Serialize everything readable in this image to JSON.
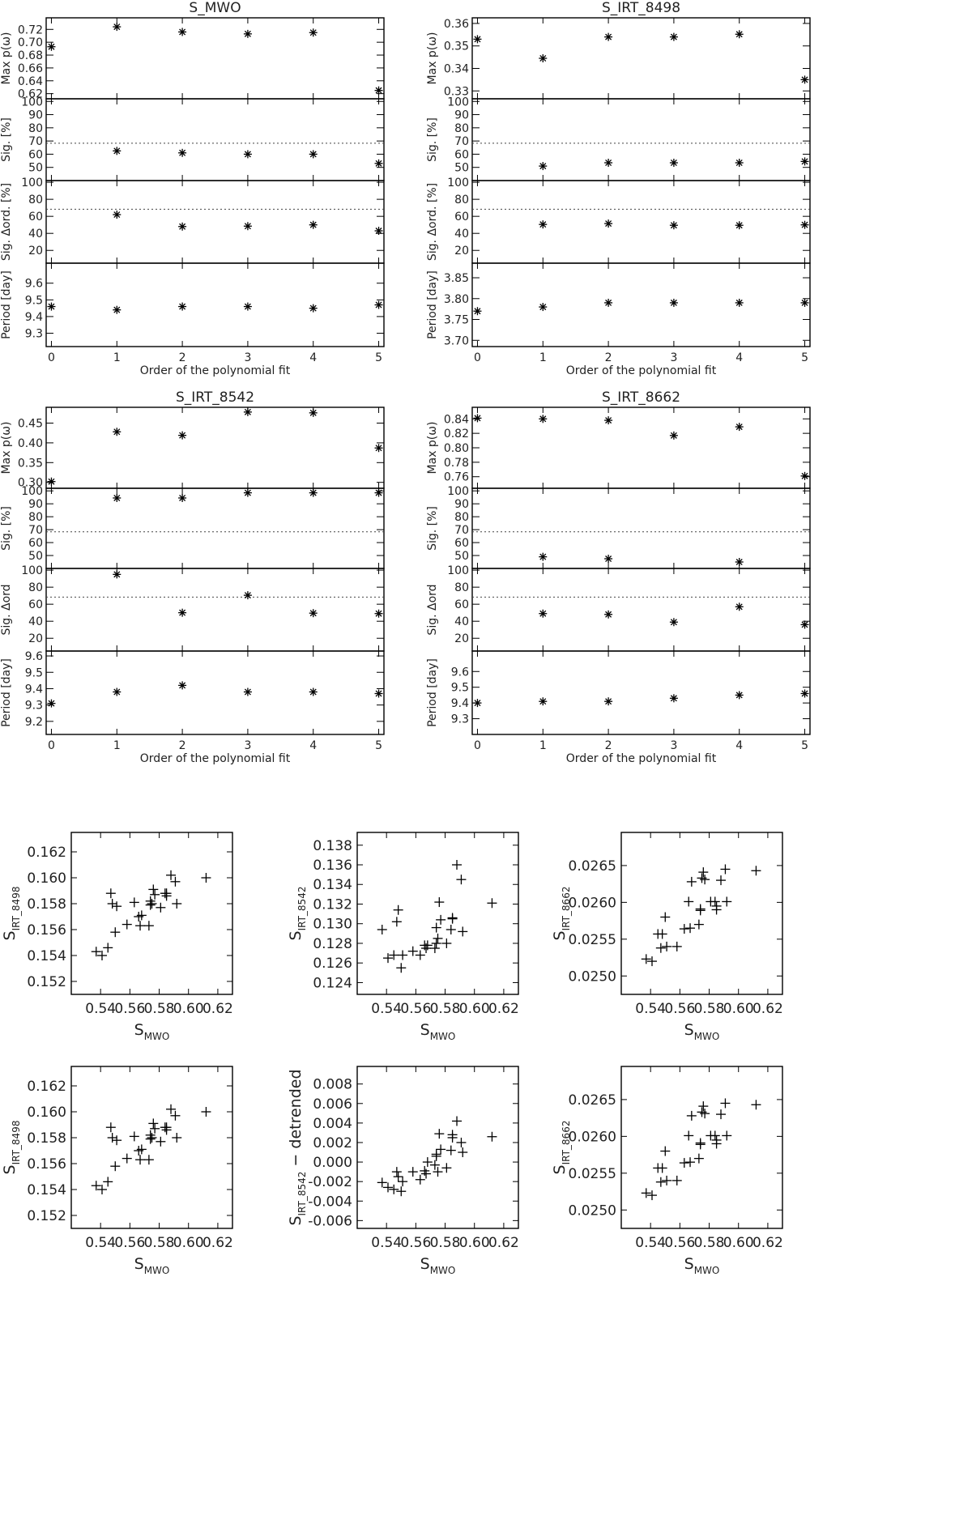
{
  "chart_data": [
    {
      "type": "scatter",
      "title": "S_MWO",
      "xlabel": "Order of the polynomial fit",
      "x": [
        0,
        1,
        2,
        3,
        4,
        5
      ],
      "x_ticks": [
        "0",
        "1",
        "2",
        "3",
        "4",
        "5"
      ],
      "panels": [
        {
          "ylabel": "Max p(ω)",
          "ylim": [
            0.612,
            0.738
          ],
          "yticks": [
            "0.62",
            "0.64",
            "0.66",
            "0.68",
            "0.70",
            "0.72"
          ],
          "values": [
            0.693,
            0.724,
            0.716,
            0.713,
            0.715,
            0.625
          ]
        },
        {
          "ylabel": "Sig. [%]",
          "ylim": [
            40,
            102
          ],
          "yticks": [
            "50",
            "60",
            "70",
            "80",
            "90",
            "100"
          ],
          "reference": 68.3,
          "values": [
            null,
            62.5,
            61,
            60,
            60,
            53
          ]
        },
        {
          "ylabel": "Sig. Δord. [%]",
          "ylim": [
            5,
            102
          ],
          "yticks": [
            "20",
            "40",
            "60",
            "80",
            "100"
          ],
          "reference": 68.3,
          "values": [
            null,
            62,
            48,
            48.5,
            50,
            43
          ]
        },
        {
          "ylabel": "Period [day]",
          "ylim": [
            9.22,
            9.72
          ],
          "yticks": [
            "9.3",
            "9.4",
            "9.5",
            "9.6"
          ],
          "values": [
            9.46,
            9.44,
            9.46,
            9.46,
            9.45,
            9.47
          ]
        }
      ]
    },
    {
      "type": "scatter",
      "title": "S_IRT_8498",
      "xlabel": "Order of the polynomial fit",
      "x": [
        0,
        1,
        2,
        3,
        4,
        5
      ],
      "x_ticks": [
        "0",
        "1",
        "2",
        "3",
        "4",
        "5"
      ],
      "panels": [
        {
          "ylabel": "Max p(ω)",
          "ylim": [
            0.3265,
            0.3625
          ],
          "yticks": [
            "0.33",
            "0.34",
            "0.35",
            "0.36"
          ],
          "values": [
            0.353,
            0.3445,
            0.354,
            0.354,
            0.3552,
            0.335
          ]
        },
        {
          "ylabel": "Sig. [%]",
          "ylim": [
            40,
            102
          ],
          "yticks": [
            "50",
            "60",
            "70",
            "80",
            "90",
            "100"
          ],
          "reference": 68.3,
          "values": [
            null,
            51,
            53.5,
            53.5,
            53.5,
            54.5
          ]
        },
        {
          "ylabel": "Sig. Δord. [%]",
          "ylim": [
            5,
            102
          ],
          "yticks": [
            "20",
            "40",
            "60",
            "80",
            "100"
          ],
          "reference": 68.3,
          "values": [
            null,
            50.5,
            51.5,
            49.5,
            49.5,
            50
          ]
        },
        {
          "ylabel": "Period [day]",
          "ylim": [
            3.685,
            3.885
          ],
          "yticks": [
            "3.70",
            "3.75",
            "3.80",
            "3.85"
          ],
          "values": [
            3.77,
            3.78,
            3.79,
            3.79,
            3.79,
            3.79
          ]
        }
      ]
    },
    {
      "type": "scatter",
      "title": "S_IRT_8542",
      "xlabel": "Order of the polynomial fit",
      "x": [
        0,
        1,
        2,
        3,
        4,
        5
      ],
      "x_ticks": [
        "0",
        "1",
        "2",
        "3",
        "4",
        "5"
      ],
      "panels": [
        {
          "ylabel": "Max p(ω)",
          "ylim": [
            0.285,
            0.49
          ],
          "yticks": [
            "0.30",
            "0.35",
            "0.40",
            "0.45"
          ],
          "values": [
            0.302,
            0.428,
            0.419,
            0.478,
            0.476,
            0.387
          ]
        },
        {
          "ylabel": "Sig. [%]",
          "ylim": [
            40,
            102
          ],
          "yticks": [
            "50",
            "60",
            "70",
            "80",
            "90",
            "100"
          ],
          "reference": 68.3,
          "values": [
            null,
            94.5,
            94.5,
            98.5,
            98.5,
            98.5
          ]
        },
        {
          "ylabel": "Sig. Δord",
          "ylim": [
            5,
            102
          ],
          "yticks": [
            "20",
            "40",
            "60",
            "80",
            "100"
          ],
          "reference": 68.3,
          "values": [
            null,
            95,
            50,
            70.5,
            49.5,
            49
          ]
        },
        {
          "ylabel": "Period [day]",
          "ylim": [
            9.12,
            9.63
          ],
          "yticks": [
            "9.2",
            "9.3",
            "9.4",
            "9.5",
            "9.6"
          ],
          "values": [
            9.31,
            9.38,
            9.42,
            9.38,
            9.38,
            9.37
          ]
        }
      ]
    },
    {
      "type": "scatter",
      "title": "S_IRT_8662",
      "xlabel": "Order of the polynomial fit",
      "x": [
        0,
        1,
        2,
        3,
        4,
        5
      ],
      "x_ticks": [
        "0",
        "1",
        "2",
        "3",
        "4",
        "5"
      ],
      "panels": [
        {
          "ylabel": "Max p(ω)",
          "ylim": [
            0.744,
            0.856
          ],
          "yticks": [
            "0.76",
            "0.78",
            "0.80",
            "0.82",
            "0.84"
          ],
          "values": [
            0.841,
            0.84,
            0.838,
            0.817,
            0.829,
            0.761
          ]
        },
        {
          "ylabel": "Sig. [%]",
          "ylim": [
            40,
            102
          ],
          "yticks": [
            "50",
            "60",
            "70",
            "80",
            "90",
            "100"
          ],
          "reference": 68.3,
          "values": [
            null,
            49,
            47.5,
            null,
            45,
            null
          ]
        },
        {
          "ylabel": "Sig. Δord",
          "ylim": [
            5,
            102
          ],
          "yticks": [
            "20",
            "40",
            "60",
            "80",
            "100"
          ],
          "reference": 68.3,
          "values": [
            null,
            49,
            48,
            39,
            57,
            36
          ]
        },
        {
          "ylabel": "Period [day]",
          "ylim": [
            9.2,
            9.73
          ],
          "yticks": [
            "9.3",
            "9.4",
            "9.5",
            "9.6"
          ],
          "values": [
            9.4,
            9.41,
            9.41,
            9.43,
            9.45,
            9.46
          ]
        }
      ]
    },
    {
      "type": "scatter",
      "xlabel": "S_MWO",
      "ylabel": "S_IRT_8498",
      "xlim": [
        0.52,
        0.63
      ],
      "ylim": [
        0.151,
        0.1635
      ],
      "xticks": [
        "0.54",
        "0.56",
        "0.58",
        "0.60",
        "0.62"
      ],
      "yticks": [
        "0.152",
        "0.154",
        "0.156",
        "0.158",
        "0.160",
        "0.162"
      ],
      "x": [
        0.537,
        0.541,
        0.545,
        0.547,
        0.548,
        0.55,
        0.551,
        0.558,
        0.563,
        0.566,
        0.567,
        0.568,
        0.573,
        0.574,
        0.574,
        0.575,
        0.576,
        0.577,
        0.581,
        0.584,
        0.585,
        0.585,
        0.588,
        0.591,
        0.592,
        0.612
      ],
      "y": [
        0.1543,
        0.154,
        0.1546,
        0.1588,
        0.158,
        0.1558,
        0.1578,
        0.1564,
        0.1581,
        0.157,
        0.1563,
        0.1571,
        0.1563,
        0.1582,
        0.1579,
        0.158,
        0.1591,
        0.1587,
        0.1577,
        0.1588,
        0.1588,
        0.1586,
        0.1602,
        0.1597,
        0.158,
        0.16
      ]
    },
    {
      "type": "scatter",
      "xlabel": "S_MWO",
      "ylabel": "S_IRT_8542",
      "xlim": [
        0.52,
        0.63
      ],
      "ylim": [
        0.1228,
        0.1393
      ],
      "xticks": [
        "0.54",
        "0.56",
        "0.58",
        "0.60",
        "0.62"
      ],
      "yticks": [
        "0.124",
        "0.126",
        "0.128",
        "0.130",
        "0.132",
        "0.134",
        "0.136",
        "0.138"
      ],
      "x": [
        0.537,
        0.541,
        0.545,
        0.547,
        0.548,
        0.55,
        0.551,
        0.558,
        0.563,
        0.566,
        0.567,
        0.568,
        0.573,
        0.574,
        0.574,
        0.575,
        0.576,
        0.577,
        0.581,
        0.584,
        0.585,
        0.585,
        0.588,
        0.591,
        0.592,
        0.612
      ],
      "y": [
        0.1294,
        0.1265,
        0.1268,
        0.1302,
        0.1314,
        0.1255,
        0.1268,
        0.1272,
        0.1268,
        0.1278,
        0.1275,
        0.1278,
        0.1275,
        0.1296,
        0.128,
        0.1285,
        0.1322,
        0.1304,
        0.128,
        0.1294,
        0.1305,
        0.1306,
        0.136,
        0.1345,
        0.1292,
        0.1321
      ]
    },
    {
      "type": "scatter",
      "xlabel": "S_MWO",
      "ylabel": "S_IRT_8662",
      "xlim": [
        0.52,
        0.63
      ],
      "ylim": [
        0.02475,
        0.02695
      ],
      "xticks": [
        "0.54",
        "0.56",
        "0.58",
        "0.60",
        "0.62"
      ],
      "yticks": [
        "0.0250",
        "0.0255",
        "0.0260",
        "0.0265"
      ],
      "x": [
        0.537,
        0.541,
        0.545,
        0.547,
        0.548,
        0.55,
        0.551,
        0.558,
        0.563,
        0.566,
        0.567,
        0.568,
        0.573,
        0.574,
        0.574,
        0.575,
        0.576,
        0.577,
        0.581,
        0.584,
        0.585,
        0.585,
        0.588,
        0.591,
        0.592,
        0.612
      ],
      "y": [
        0.02523,
        0.0252,
        0.02557,
        0.02538,
        0.02557,
        0.0258,
        0.0254,
        0.0254,
        0.02564,
        0.02601,
        0.02565,
        0.02628,
        0.0257,
        0.02591,
        0.02589,
        0.02633,
        0.02641,
        0.02631,
        0.02601,
        0.02601,
        0.02595,
        0.0259,
        0.0263,
        0.02645,
        0.02601,
        0.02643
      ]
    },
    {
      "type": "scatter",
      "xlabel": "S_MWO",
      "ylabel": "S_IRT_8498",
      "xlim": [
        0.52,
        0.63
      ],
      "ylim": [
        0.151,
        0.1635
      ],
      "xticks": [
        "0.54",
        "0.56",
        "0.58",
        "0.60",
        "0.62"
      ],
      "yticks": [
        "0.152",
        "0.154",
        "0.156",
        "0.158",
        "0.160",
        "0.162"
      ],
      "x": [
        0.537,
        0.541,
        0.545,
        0.547,
        0.548,
        0.55,
        0.551,
        0.558,
        0.563,
        0.566,
        0.567,
        0.568,
        0.573,
        0.574,
        0.574,
        0.575,
        0.576,
        0.577,
        0.581,
        0.584,
        0.585,
        0.585,
        0.588,
        0.591,
        0.592,
        0.612
      ],
      "y": [
        0.1543,
        0.154,
        0.1546,
        0.1588,
        0.158,
        0.1558,
        0.1578,
        0.1564,
        0.1581,
        0.157,
        0.1563,
        0.1571,
        0.1563,
        0.1582,
        0.1579,
        0.158,
        0.1591,
        0.1587,
        0.1577,
        0.1588,
        0.1588,
        0.1586,
        0.1602,
        0.1597,
        0.158,
        0.16
      ]
    },
    {
      "type": "scatter",
      "xlabel": "S_MWO",
      "ylabel": "S_IRT_8542 − detrended",
      "xlim": [
        0.52,
        0.63
      ],
      "ylim": [
        -0.0068,
        0.0098
      ],
      "xticks": [
        "0.54",
        "0.56",
        "0.58",
        "0.60",
        "0.62"
      ],
      "yticks": [
        "-0.006",
        "-0.004",
        "-0.002",
        "0.000",
        "0.002",
        "0.004",
        "0.006",
        "0.008"
      ],
      "x": [
        0.537,
        0.541,
        0.545,
        0.547,
        0.548,
        0.55,
        0.551,
        0.558,
        0.563,
        0.566,
        0.567,
        0.568,
        0.573,
        0.574,
        0.574,
        0.575,
        0.576,
        0.577,
        0.581,
        0.584,
        0.585,
        0.585,
        0.588,
        0.591,
        0.592,
        0.612
      ],
      "y": [
        -0.0021,
        -0.0026,
        -0.0028,
        -0.001,
        -0.0015,
        -0.003,
        -0.002,
        -0.001,
        -0.0018,
        -0.0009,
        -0.0012,
        0.0,
        -0.0003,
        0.0008,
        0.0006,
        -0.001,
        0.0029,
        0.0013,
        -0.0006,
        0.0012,
        0.0028,
        0.0025,
        0.0042,
        0.002,
        0.001,
        0.0026
      ]
    },
    {
      "type": "scatter",
      "xlabel": "S_MWO",
      "ylabel": "S_IRT_8662",
      "xlim": [
        0.52,
        0.63
      ],
      "ylim": [
        0.02475,
        0.02695
      ],
      "xticks": [
        "0.54",
        "0.56",
        "0.58",
        "0.60",
        "0.62"
      ],
      "yticks": [
        "0.0250",
        "0.0255",
        "0.0260",
        "0.0265"
      ],
      "x": [
        0.537,
        0.541,
        0.545,
        0.547,
        0.548,
        0.55,
        0.551,
        0.558,
        0.563,
        0.566,
        0.567,
        0.568,
        0.573,
        0.574,
        0.574,
        0.575,
        0.576,
        0.577,
        0.581,
        0.584,
        0.585,
        0.585,
        0.588,
        0.591,
        0.592,
        0.612
      ],
      "y": [
        0.02523,
        0.0252,
        0.02557,
        0.02538,
        0.02557,
        0.0258,
        0.0254,
        0.0254,
        0.02564,
        0.02601,
        0.02565,
        0.02628,
        0.0257,
        0.02591,
        0.02589,
        0.02633,
        0.02641,
        0.02631,
        0.02601,
        0.02601,
        0.02595,
        0.0259,
        0.0263,
        0.02645,
        0.02601,
        0.02643
      ]
    }
  ]
}
